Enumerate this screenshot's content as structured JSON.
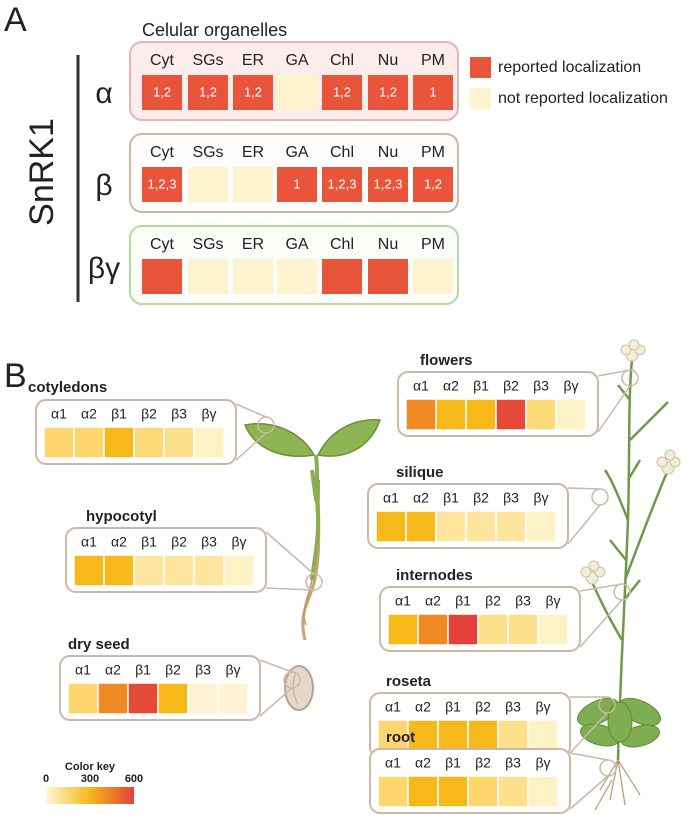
{
  "panel_a": {
    "label": "A",
    "title": "Celular organelles",
    "protein": "SnRK1",
    "columns": [
      "Cyt",
      "SGs",
      "ER",
      "GA",
      "Chl",
      "Nu",
      "PM"
    ],
    "rows": [
      {
        "subunit": "α",
        "cells": [
          {
            "reported": true,
            "label": "1,2"
          },
          {
            "reported": true,
            "label": "1,2"
          },
          {
            "reported": true,
            "label": "1,2"
          },
          {
            "reported": false
          },
          {
            "reported": true,
            "label": "1,2"
          },
          {
            "reported": true,
            "label": "1,2"
          },
          {
            "reported": true,
            "label": "1"
          }
        ]
      },
      {
        "subunit": "β",
        "cells": [
          {
            "reported": true,
            "label": "1,2,3"
          },
          {
            "reported": false
          },
          {
            "reported": false
          },
          {
            "reported": true,
            "label": "1"
          },
          {
            "reported": true,
            "label": "1,2,3"
          },
          {
            "reported": true,
            "label": "1,2,3"
          },
          {
            "reported": true,
            "label": "1,2"
          }
        ]
      },
      {
        "subunit": "βγ",
        "cells": [
          {
            "reported": true
          },
          {
            "reported": false
          },
          {
            "reported": false
          },
          {
            "reported": false
          },
          {
            "reported": true
          },
          {
            "reported": true
          },
          {
            "reported": false
          }
        ]
      }
    ],
    "legend": [
      {
        "label": "reported localization",
        "color": "#e8553a"
      },
      {
        "label": "not reported localization",
        "color": "#fdf3cf"
      }
    ]
  },
  "panel_b": {
    "label": "B",
    "subunits": [
      "α1",
      "α2",
      "β1",
      "β2",
      "β3",
      "βγ"
    ],
    "tissues": [
      {
        "name": "cotyledons",
        "colors": [
          "#fdd66e",
          "#fdd66e",
          "#f7b81a",
          "#fdd97a",
          "#fddf8c",
          "#fdf1c6"
        ]
      },
      {
        "name": "hypocotyl",
        "colors": [
          "#f7b81a",
          "#f7b81a",
          "#fde59e",
          "#fde59e",
          "#fde59e",
          "#fdf1c6"
        ]
      },
      {
        "name": "dry seed",
        "colors": [
          "#fdd66e",
          "#ef8a25",
          "#e54a38",
          "#f7b81a",
          "#fef4d4",
          "#fef4d4"
        ]
      },
      {
        "name": "flowers",
        "colors": [
          "#ef8a25",
          "#f7b81a",
          "#f7b81a",
          "#e54a38",
          "#fdd97a",
          "#fdf1c6"
        ]
      },
      {
        "name": "silique",
        "colors": [
          "#f7b81a",
          "#f7b81a",
          "#fde59e",
          "#fde59e",
          "#fde59e",
          "#fdf1c6"
        ]
      },
      {
        "name": "internodes",
        "colors": [
          "#f7b81a",
          "#ef8a25",
          "#e5403a",
          "#fddf8c",
          "#fddf8c",
          "#fdf1c6"
        ]
      },
      {
        "name": "roseta",
        "colors": [
          "#fdd66e",
          "#f7b81a",
          "#f7b81a",
          "#f7b81a",
          "#fddf8c",
          "#fdf1c6"
        ]
      },
      {
        "name": "root",
        "colors": [
          "#fdd66e",
          "#f7b81a",
          "#f7b81a",
          "#fdd66e",
          "#fddf8c",
          "#fdf1c6"
        ]
      }
    ],
    "color_key": {
      "title": "Color key",
      "ticks": [
        0,
        300,
        600
      ],
      "range": [
        0,
        600
      ],
      "colors": [
        "#fef6d6",
        "#f7b81a",
        "#e5403a"
      ]
    }
  }
}
